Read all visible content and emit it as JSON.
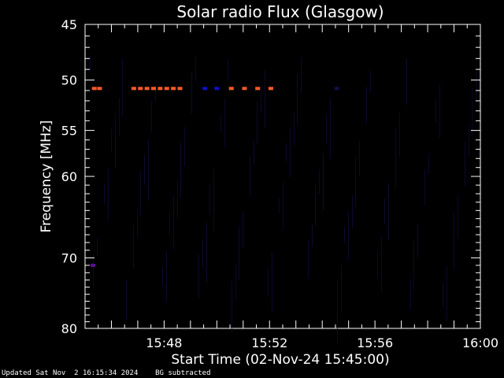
{
  "chart_data": {
    "type": "heatmap",
    "title": "Solar radio Flux (Glasgow)",
    "xlabel": "Start Time (02-Nov-24 15:45:00)",
    "ylabel": "Frequency [MHz]",
    "x_ticks": [
      "15:48",
      "15:52",
      "15:56",
      "16:00"
    ],
    "x_tick_minutes": [
      3,
      7,
      11,
      15
    ],
    "xlim_minutes": [
      0,
      15
    ],
    "y_ticks": [
      45,
      50,
      55,
      60,
      70,
      80
    ],
    "ylim": [
      45,
      80
    ],
    "y_scale": "log",
    "grid": false,
    "background_color": "#000000",
    "axis_color": "#ffffff",
    "colors": {
      "hot": "#ff5a28",
      "cool": "#1010c8",
      "dim": "#10104a",
      "violet": "#5a1090"
    },
    "bursts": [
      {
        "t_min": 0.35,
        "freq": 50.8,
        "level": "hot"
      },
      {
        "t_min": 0.55,
        "freq": 50.8,
        "level": "hot"
      },
      {
        "t_min": 1.85,
        "freq": 50.8,
        "level": "hot"
      },
      {
        "t_min": 2.1,
        "freq": 50.8,
        "level": "hot"
      },
      {
        "t_min": 2.35,
        "freq": 50.8,
        "level": "hot"
      },
      {
        "t_min": 2.6,
        "freq": 50.8,
        "level": "hot"
      },
      {
        "t_min": 2.85,
        "freq": 50.8,
        "level": "hot"
      },
      {
        "t_min": 3.1,
        "freq": 50.8,
        "level": "hot"
      },
      {
        "t_min": 3.35,
        "freq": 50.8,
        "level": "hot"
      },
      {
        "t_min": 3.6,
        "freq": 50.8,
        "level": "hot"
      },
      {
        "t_min": 4.55,
        "freq": 50.8,
        "level": "cool"
      },
      {
        "t_min": 5.0,
        "freq": 50.8,
        "level": "cool"
      },
      {
        "t_min": 5.55,
        "freq": 50.8,
        "level": "hot"
      },
      {
        "t_min": 6.05,
        "freq": 50.8,
        "level": "hot"
      },
      {
        "t_min": 6.55,
        "freq": 50.8,
        "level": "hot"
      },
      {
        "t_min": 7.05,
        "freq": 50.8,
        "level": "hot"
      },
      {
        "t_min": 9.55,
        "freq": 50.8,
        "level": "dim"
      },
      {
        "t_min": 0.3,
        "freq": 71.0,
        "level": "violet"
      }
    ]
  },
  "footer": {
    "updated": "Updated Sat Nov  2 16:15:34 2024",
    "note": "BG subtracted"
  }
}
